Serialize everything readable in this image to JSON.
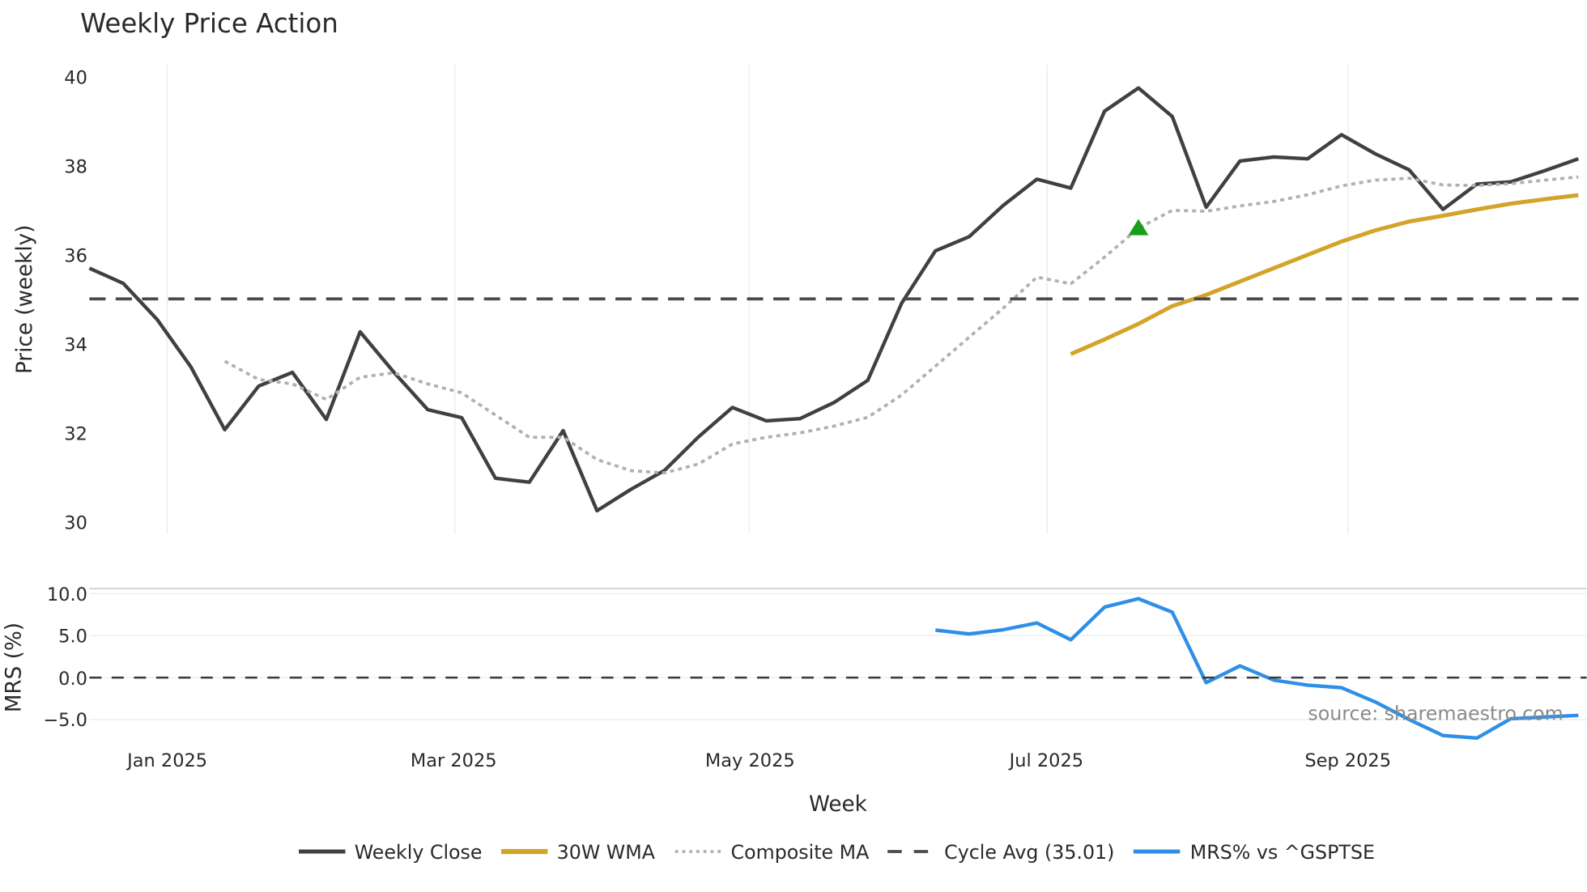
{
  "chart_data": [
    {
      "type": "line",
      "title": "Weekly Price Action",
      "xlabel": "Week",
      "ylabel": "Price (weekly)",
      "ylim": [
        30,
        40
      ],
      "yticks": [
        30,
        32,
        34,
        36,
        38,
        40
      ],
      "x_tick_labels": [
        "Jan 2025",
        "Mar 2025",
        "May 2025",
        "Jul 2025",
        "Sep 2025"
      ],
      "x_tick_week_index": [
        2.3,
        10.8,
        19.5,
        28.3,
        37.2
      ],
      "grid": "vertical",
      "series": [
        {
          "name": "Weekly Close",
          "color": "#404040",
          "style": "solid",
          "start_index": 0,
          "values": [
            35.7,
            35.36,
            34.55,
            33.48,
            32.07,
            33.05,
            33.36,
            32.3,
            34.27,
            33.36,
            32.52,
            32.34,
            30.98,
            30.89,
            32.05,
            30.25,
            30.73,
            31.16,
            31.91,
            32.57,
            32.27,
            32.32,
            32.68,
            33.18,
            34.91,
            36.09,
            36.41,
            37.11,
            37.7,
            37.5,
            39.23,
            39.75,
            39.11,
            37.07,
            38.11,
            38.2,
            38.16,
            38.7,
            38.27,
            37.91,
            37.02,
            37.59,
            37.64,
            37.89,
            38.16
          ]
        },
        {
          "name": "30W WMA",
          "color": "#d4a32a",
          "style": "solid",
          "start_index": 29,
          "values": [
            33.77,
            34.1,
            34.45,
            34.85,
            35.1,
            35.4,
            35.7,
            36.0,
            36.3,
            36.55,
            36.75,
            36.88,
            37.02,
            37.15,
            37.25,
            37.34
          ]
        },
        {
          "name": "Composite MA",
          "color": "#b0b0b0",
          "style": "dotted",
          "start_index": 4,
          "values": [
            33.61,
            33.2,
            33.1,
            32.75,
            33.25,
            33.35,
            33.1,
            32.9,
            32.4,
            31.9,
            31.9,
            31.4,
            31.15,
            31.1,
            31.3,
            31.75,
            31.9,
            32.0,
            32.15,
            32.35,
            32.85,
            33.5,
            34.15,
            34.8,
            35.5,
            35.35,
            35.95,
            36.6,
            37.0,
            36.98,
            37.1,
            37.2,
            37.35,
            37.55,
            37.68,
            37.72,
            37.57,
            37.56,
            37.6,
            37.68,
            37.75
          ]
        },
        {
          "name": "Cycle Avg (35.01)",
          "color": "#4a4a4a",
          "style": "dashed",
          "constant": 35.01
        }
      ],
      "annotations": [
        {
          "type": "marker",
          "shape": "triangle-up",
          "color": "#1a9e1a",
          "week_index": 31,
          "value": 36.6
        }
      ]
    },
    {
      "type": "line",
      "title": "",
      "xlabel": "Week",
      "ylabel": "MRS (%)",
      "ylim": [
        -7.5,
        10.5
      ],
      "yticks": [
        -5.0,
        0.0,
        5.0,
        10.0
      ],
      "series": [
        {
          "name": "MRS% vs ^GSPTSE",
          "color": "#2f8fe6",
          "style": "solid",
          "start_index": 25,
          "values": [
            5.66,
            5.2,
            5.7,
            6.5,
            4.5,
            8.4,
            9.4,
            7.8,
            -0.6,
            1.4,
            -0.3,
            -0.9,
            -1.2,
            -2.9,
            -5.0,
            -6.9,
            -7.2,
            -4.9,
            -4.7,
            -4.5
          ]
        },
        {
          "name": "Zero line",
          "color": "#3a3a3a",
          "style": "dashed",
          "constant": 0.0
        }
      ]
    }
  ],
  "header": {
    "title": "Weekly Price Action"
  },
  "price_panel": {
    "ylabel": "Price (weekly)",
    "yticks": [
      "30",
      "32",
      "34",
      "36",
      "38",
      "40"
    ]
  },
  "mrs_panel": {
    "ylabel": "MRS (%)",
    "yticks": [
      "10.0",
      "5.0",
      "0.0",
      "−5.0"
    ],
    "source": "source: sharemaestro.com"
  },
  "xaxis": {
    "title": "Week",
    "ticks": [
      "Jan 2025",
      "Mar 2025",
      "May 2025",
      "Jul 2025",
      "Sep 2025"
    ]
  },
  "legend": {
    "items": [
      {
        "label": "Weekly Close",
        "color": "#404040",
        "style": "solid"
      },
      {
        "label": "30W WMA",
        "color": "#d4a32a",
        "style": "solid"
      },
      {
        "label": "Composite MA",
        "color": "#b0b0b0",
        "style": "dotted"
      },
      {
        "label": "Cycle Avg (35.01)",
        "color": "#4a4a4a",
        "style": "dashed"
      },
      {
        "label": "MRS% vs ^GSPTSE",
        "color": "#2f8fe6",
        "style": "solid"
      }
    ]
  }
}
